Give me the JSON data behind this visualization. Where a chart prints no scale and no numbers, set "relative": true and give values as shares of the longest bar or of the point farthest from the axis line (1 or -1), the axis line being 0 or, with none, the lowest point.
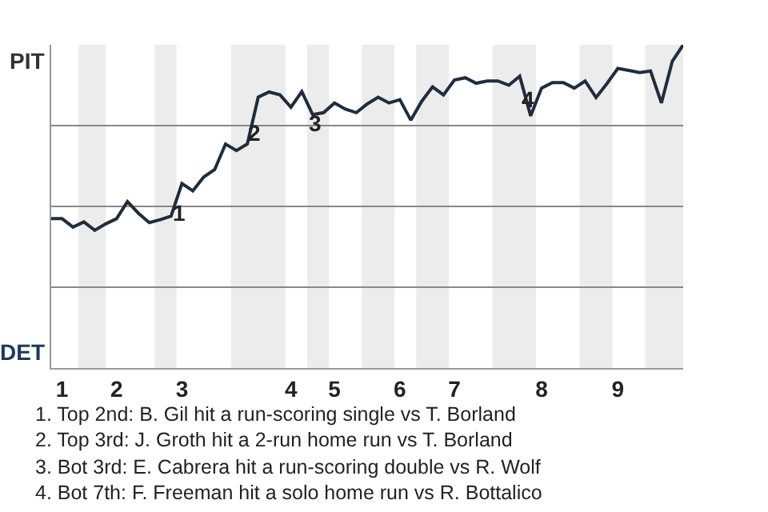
{
  "chart_data": {
    "type": "line",
    "relative": true,
    "categories": [
      null,
      "1",
      null,
      null,
      null,
      null,
      "2",
      null,
      null,
      null,
      null,
      null,
      "3",
      null,
      null,
      null,
      null,
      null,
      null,
      null,
      null,
      null,
      "4",
      null,
      null,
      null,
      "5",
      null,
      null,
      null,
      null,
      null,
      "6",
      null,
      null,
      null,
      null,
      "7",
      null,
      null,
      null,
      null,
      null,
      null,
      null,
      "8",
      null,
      null,
      null,
      null,
      null,
      null,
      "9",
      null,
      null,
      null,
      null,
      null,
      null
    ],
    "series": [
      {
        "color": "#1f2d3d",
        "values": [
          0.462,
          0.462,
          0.436,
          0.452,
          0.426,
          0.446,
          0.462,
          0.515,
          0.479,
          0.45,
          0.459,
          0.47,
          0.571,
          0.548,
          0.591,
          0.614,
          0.693,
          0.673,
          0.693,
          0.838,
          0.854,
          0.845,
          0.807,
          0.855,
          0.784,
          0.79,
          0.82,
          0.801,
          0.79,
          0.817,
          0.838,
          0.82,
          0.83,
          0.767,
          0.825,
          0.87,
          0.845,
          0.891,
          0.898,
          0.881,
          0.888,
          0.888,
          0.875,
          0.903,
          0.78,
          0.866,
          0.883,
          0.883,
          0.866,
          0.888,
          0.837,
          0.88,
          0.927,
          0.921,
          0.914,
          0.919,
          0.82,
          0.949,
          1
        ]
      }
    ],
    "grid": "y",
    "marker": "none",
    "line_style": "solid",
    "annotations": [
      "PIT",
      "DET",
      "1",
      "2",
      "3",
      "4",
      "1. Top 2nd: B. Gil hit a run-scoring single vs T. Borland",
      "2. Top 3rd: J. Groth hit a 2-run home run vs T. Borland",
      "3. Bot 3rd: E. Cabrera hit a run-scoring double vs R. Wolf",
      "4. Bot 7th: F. Freeman hit a solo home run vs R. Bottalico"
    ]
  }
}
